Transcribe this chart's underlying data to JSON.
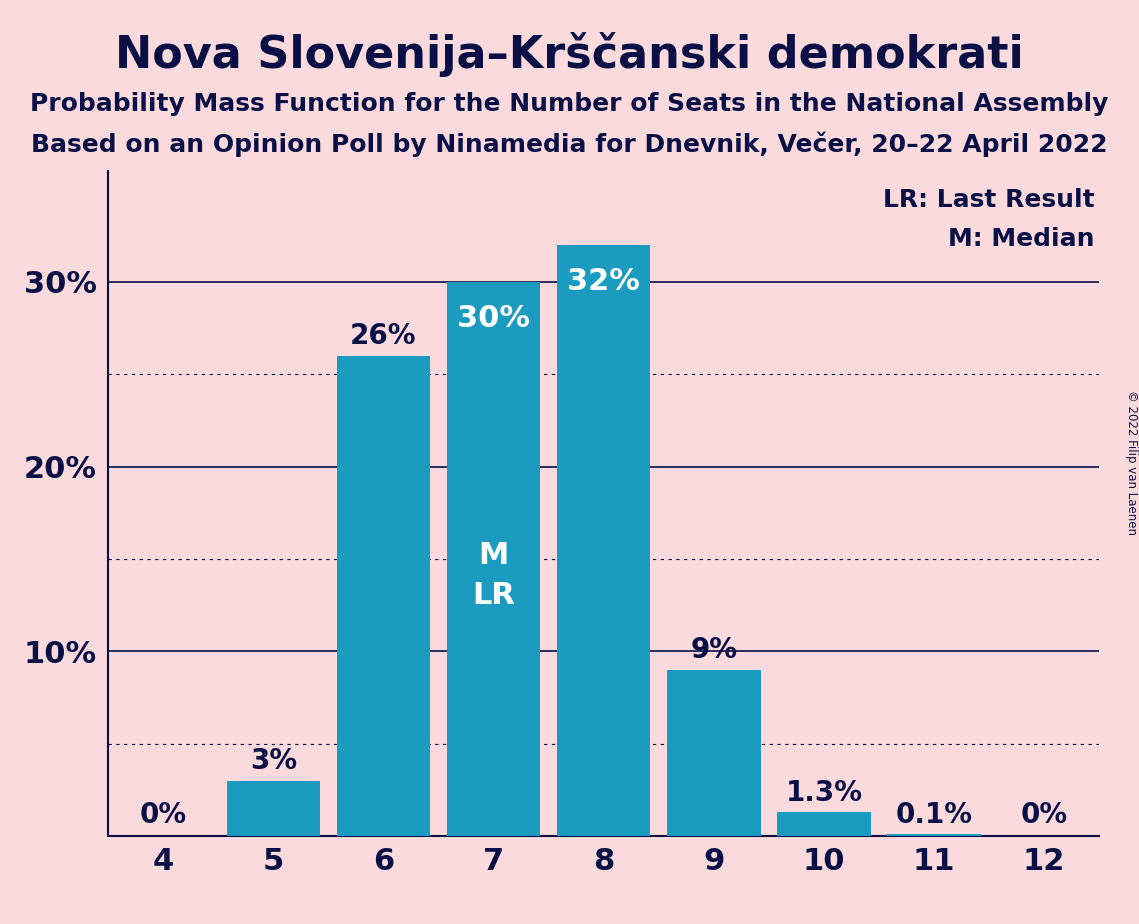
{
  "title": "Nova Slovenija–Krščanski demokrati",
  "subtitle1": "Probability Mass Function for the Number of Seats in the National Assembly",
  "subtitle2": "Based on an Opinion Poll by Ninamedia for Dnevnik, Večer, 20–22 April 2022",
  "copyright": "© 2022 Filip van Laenen",
  "categories": [
    4,
    5,
    6,
    7,
    8,
    9,
    10,
    11,
    12
  ],
  "values": [
    0.0,
    3.0,
    26.0,
    30.0,
    32.0,
    9.0,
    1.3,
    0.1,
    0.0
  ],
  "bar_color": "#1a9bbf",
  "background_color": "#fadadd",
  "text_color": "#0a1045",
  "inside_label_color": "white",
  "median_bar_idx": 3,
  "lr_bar_idx": 3,
  "title_fontsize": 32,
  "subtitle_fontsize": 18,
  "tick_fontsize": 22,
  "bar_label_fontsize": 20,
  "legend_fontsize": 18,
  "yticks_solid": [
    10,
    20,
    30
  ],
  "yticks_dotted": [
    5,
    15,
    25
  ],
  "xlim": [
    3.5,
    12.5
  ],
  "ylim": [
    0,
    36
  ]
}
